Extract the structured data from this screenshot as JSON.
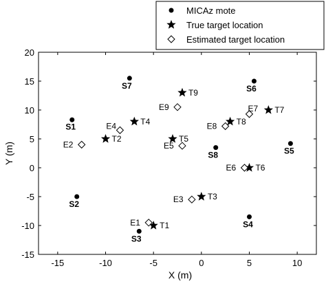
{
  "chart_data": {
    "type": "scatter",
    "xlabel": "X (m)",
    "ylabel": "Y (m)",
    "xlim": [
      -17,
      12
    ],
    "ylim": [
      -15,
      20
    ],
    "xticks": [
      -15,
      -10,
      -5,
      0,
      5,
      10
    ],
    "yticks": [
      -15,
      -10,
      -5,
      0,
      5,
      10,
      15,
      20
    ],
    "grid": false,
    "legend_position": "top-right",
    "legend": [
      {
        "label": "MICAz mote",
        "marker": "dot"
      },
      {
        "label": "True target location",
        "marker": "star"
      },
      {
        "label": "Estimated target location",
        "marker": "diamond"
      }
    ],
    "series": [
      {
        "name": "MICAz mote",
        "points": [
          {
            "label": "S1",
            "x": -13.5,
            "y": 8.3
          },
          {
            "label": "S2",
            "x": -13.0,
            "y": -5.0
          },
          {
            "label": "S3",
            "x": -6.5,
            "y": -11.0
          },
          {
            "label": "S4",
            "x": 5.0,
            "y": -8.5
          },
          {
            "label": "S5",
            "x": 9.3,
            "y": 4.2
          },
          {
            "label": "S6",
            "x": 5.5,
            "y": 15.0
          },
          {
            "label": "S7",
            "x": -7.5,
            "y": 15.5
          },
          {
            "label": "S8",
            "x": 1.5,
            "y": 3.5
          }
        ]
      },
      {
        "name": "True target location",
        "points": [
          {
            "label": "T1",
            "x": -5.0,
            "y": -10.0
          },
          {
            "label": "T2",
            "x": -10.0,
            "y": 5.0
          },
          {
            "label": "T3",
            "x": 0.0,
            "y": -5.0
          },
          {
            "label": "T4",
            "x": -7.0,
            "y": 8.0
          },
          {
            "label": "T5",
            "x": -3.0,
            "y": 5.0
          },
          {
            "label": "T6",
            "x": 5.0,
            "y": 0.0
          },
          {
            "label": "T7",
            "x": 7.0,
            "y": 10.0
          },
          {
            "label": "T8",
            "x": 3.0,
            "y": 8.0
          },
          {
            "label": "T9",
            "x": -2.0,
            "y": 13.0
          }
        ]
      },
      {
        "name": "Estimated target location",
        "points": [
          {
            "label": "E1",
            "x": -5.5,
            "y": -9.5
          },
          {
            "label": "E2",
            "x": -12.5,
            "y": 4.0
          },
          {
            "label": "E3",
            "x": -1.0,
            "y": -5.5
          },
          {
            "label": "E4",
            "x": -8.5,
            "y": 6.5
          },
          {
            "label": "E5",
            "x": -2.0,
            "y": 3.8
          },
          {
            "label": "E6",
            "x": 4.5,
            "y": 0.0
          },
          {
            "label": "E7",
            "x": 5.0,
            "y": 9.3
          },
          {
            "label": "E8",
            "x": 2.5,
            "y": 7.2
          },
          {
            "label": "E9",
            "x": -2.5,
            "y": 10.5
          }
        ]
      }
    ]
  }
}
